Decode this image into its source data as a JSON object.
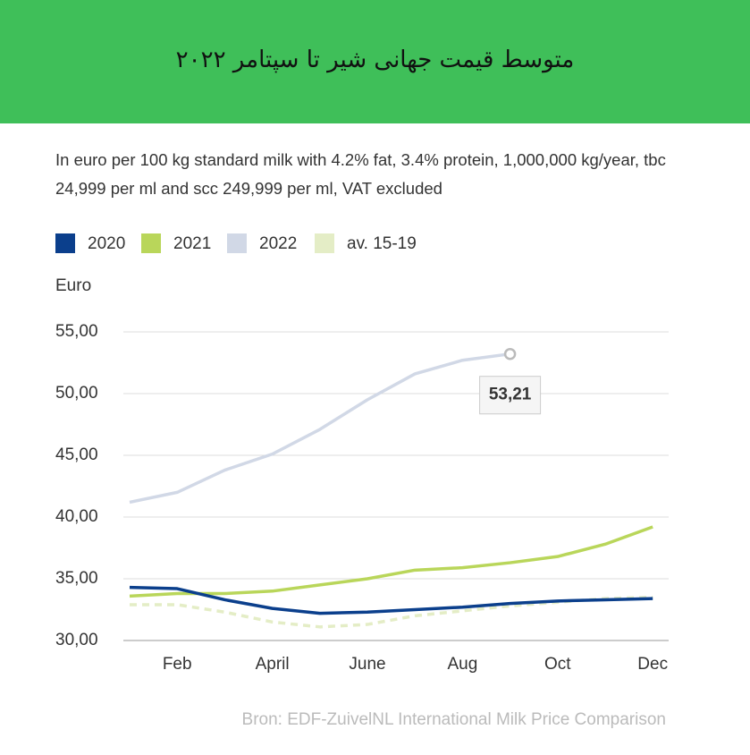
{
  "chart_data": {
    "type": "line",
    "title": "متوسط قیمت جهانی شیر تا سپتامر ۲۰۲۲",
    "subtitle": "In euro per 100 kg standard milk with 4.2% fat, 3.4% protein, 1,000,000 kg/year, tbc 24,999 per ml and scc 249,999 per ml, VAT excluded",
    "y_label": "Euro",
    "source": "Bron:  EDF-ZuivelNL International Milk Price Comparison",
    "categories": [
      null,
      "Feb",
      null,
      "April",
      null,
      "June",
      null,
      "Aug",
      null,
      "Oct",
      null,
      "Dec"
    ],
    "series": [
      {
        "name": "2020",
        "color": "#0b3f8c",
        "values": [
          34.3,
          34.2,
          33.3,
          32.6,
          32.2,
          32.3,
          32.5,
          32.7,
          33.0,
          33.2,
          33.3,
          33.4
        ]
      },
      {
        "name": "2021",
        "color": "#b9d65a",
        "values": [
          33.6,
          33.8,
          33.8,
          34.0,
          34.5,
          35.0,
          35.7,
          35.9,
          36.3,
          36.8,
          37.8,
          39.2
        ]
      },
      {
        "name": "2022",
        "color": "#d1d8e6",
        "values": [
          41.2,
          42.0,
          43.8,
          45.1,
          47.1,
          49.5,
          51.6,
          52.7,
          53.21,
          null,
          null,
          null
        ],
        "value_labels": [
          null,
          null,
          null,
          null,
          null,
          null,
          null,
          null,
          "53,21",
          null,
          null,
          null
        ]
      },
      {
        "name": "av. 15-19",
        "color": "#e4edc6",
        "dashed": true,
        "values": [
          32.9,
          32.9,
          32.3,
          31.5,
          31.1,
          31.3,
          32.0,
          32.4,
          32.8,
          33.1,
          33.4,
          33.5
        ]
      }
    ],
    "ylim": [
      30,
      55
    ],
    "yticks": [
      {
        "value": 30,
        "label": "30,00"
      },
      {
        "value": 35,
        "label": "35,00"
      },
      {
        "value": 40,
        "label": "40,00"
      },
      {
        "value": 45,
        "label": "45,00"
      },
      {
        "value": 50,
        "label": "50,00"
      },
      {
        "value": 55,
        "label": "55,00"
      }
    ],
    "grid": true
  }
}
